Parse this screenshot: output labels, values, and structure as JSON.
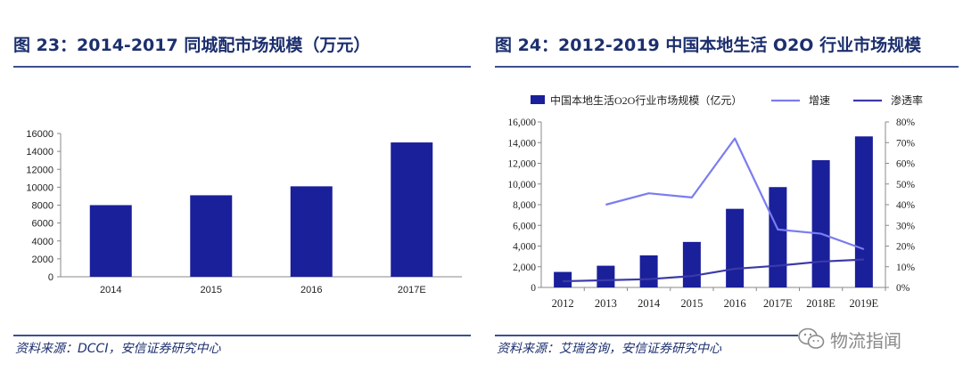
{
  "left": {
    "title": "图 23：2014-2017 同城配市场规模（万元）",
    "source": "资料来源：DCCI，安信证券研究中心"
  },
  "right": {
    "title": "图 24：2012-2019 中国本地生活 O2O 行业市场规模",
    "source": "资料来源：艾瑞咨询，安信证券研究中心"
  },
  "watermark": {
    "text": "物流指闻",
    "icon": "wechat-icon"
  },
  "colors": {
    "bar": "#1a1f9a",
    "growth": "#7b7cf0",
    "penetration": "#3b3aa8",
    "title": "#1c2f6e"
  },
  "chart_data": [
    {
      "type": "bar",
      "title": "2014-2017 同城配市场规模（万元）",
      "categories": [
        "2014",
        "2015",
        "2016",
        "2017E"
      ],
      "values": [
        8000,
        9100,
        10100,
        15000
      ],
      "ylim": [
        0,
        16000
      ],
      "yticks": [
        "0",
        "2000",
        "4000",
        "6000",
        "8000",
        "10000",
        "12000",
        "14000",
        "16000"
      ],
      "xlabel": "",
      "ylabel": ""
    },
    {
      "type": "bar",
      "title": "2012-2019 中国本地生活 O2O 行业市场规模",
      "categories": [
        "2012",
        "2013",
        "2014",
        "2015",
        "2016",
        "2017E",
        "2018E",
        "2019E"
      ],
      "series": [
        {
          "name": "中国本地生活O2O行业市场规模（亿元）",
          "kind": "bar",
          "axis": "left",
          "values": [
            1500,
            2100,
            3100,
            4400,
            7600,
            9700,
            12300,
            14600
          ]
        },
        {
          "name": "增速",
          "kind": "line",
          "axis": "right",
          "values": [
            null,
            0.4,
            0.455,
            0.435,
            0.72,
            0.28,
            0.26,
            0.185
          ]
        },
        {
          "name": "渗透率",
          "kind": "line",
          "axis": "right",
          "values": [
            0.03,
            0.035,
            0.04,
            0.055,
            0.09,
            0.105,
            0.125,
            0.135
          ]
        }
      ],
      "ylim": [
        0,
        16000
      ],
      "yticks": [
        "0",
        "2,000",
        "4,000",
        "6,000",
        "8,000",
        "10,000",
        "12,000",
        "14,000",
        "16,000"
      ],
      "y2lim": [
        0,
        0.8
      ],
      "y2ticks": [
        "0%",
        "10%",
        "20%",
        "30%",
        "40%",
        "50%",
        "60%",
        "70%",
        "80%"
      ],
      "legend": "top"
    }
  ]
}
